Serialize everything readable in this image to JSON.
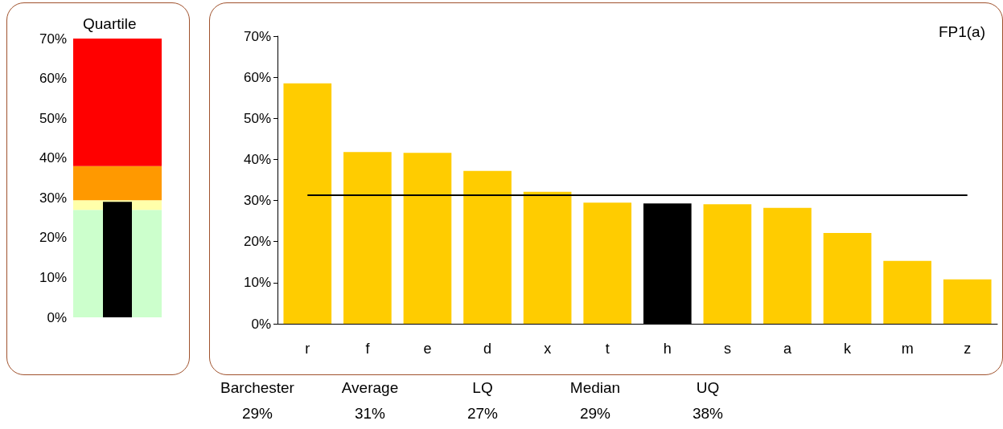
{
  "chart_data": [
    {
      "type": "bar",
      "title": "Quartile",
      "categories": [
        null
      ],
      "values": [
        29
      ],
      "color": "#000000",
      "ylim": [
        0,
        70
      ],
      "yticks": [
        {
          "value": 0,
          "label": "0%"
        },
        {
          "value": 10,
          "label": "10%"
        },
        {
          "value": 20,
          "label": "20%"
        },
        {
          "value": 30,
          "label": "30%"
        },
        {
          "value": 40,
          "label": "40%"
        },
        {
          "value": 50,
          "label": "50%"
        },
        {
          "value": 60,
          "label": "60%"
        },
        {
          "value": 70,
          "label": "70%"
        }
      ],
      "bands": [
        {
          "axis": "y",
          "from": 0,
          "to": 27,
          "color": "#ccffcc"
        },
        {
          "axis": "y",
          "from": 27,
          "to": 29.4,
          "color": "#ffffaa"
        },
        {
          "axis": "y",
          "from": 29.4,
          "to": 38,
          "color": "#ff9900"
        },
        {
          "axis": "y",
          "from": 38,
          "to": 70,
          "color": "#ff0000"
        }
      ],
      "grid": false
    },
    {
      "type": "bar",
      "title": "FP1(a)",
      "categories": [
        "r",
        "f",
        "e",
        "d",
        "x",
        "t",
        "h",
        "s",
        "a",
        "k",
        "m",
        "z"
      ],
      "values": [
        58.5,
        41.8,
        41.6,
        37.2,
        32.1,
        29.5,
        29.3,
        29.1,
        28.2,
        22.1,
        15.3,
        10.8
      ],
      "colors": [
        "#ffcc00",
        "#ffcc00",
        "#ffcc00",
        "#ffcc00",
        "#ffcc00",
        "#ffcc00",
        "#000000",
        "#ffcc00",
        "#ffcc00",
        "#ffcc00",
        "#ffcc00",
        "#ffcc00"
      ],
      "ylim": [
        0,
        70
      ],
      "yticks": [
        {
          "value": 0,
          "label": "0%"
        },
        {
          "value": 10,
          "label": "10%"
        },
        {
          "value": 20,
          "label": "20%"
        },
        {
          "value": 30,
          "label": "30%"
        },
        {
          "value": 40,
          "label": "40%"
        },
        {
          "value": 50,
          "label": "50%"
        },
        {
          "value": 60,
          "label": "60%"
        },
        {
          "value": 70,
          "label": "70%"
        }
      ],
      "ref_lines": [
        {
          "axis": "y",
          "value": 31.3,
          "color": "#000000"
        }
      ],
      "annotations": [
        "Barchester",
        "Average",
        "LQ",
        "Median",
        "UQ",
        "29%",
        "31%",
        "27%",
        "29%",
        "38%"
      ],
      "grid": false
    }
  ]
}
